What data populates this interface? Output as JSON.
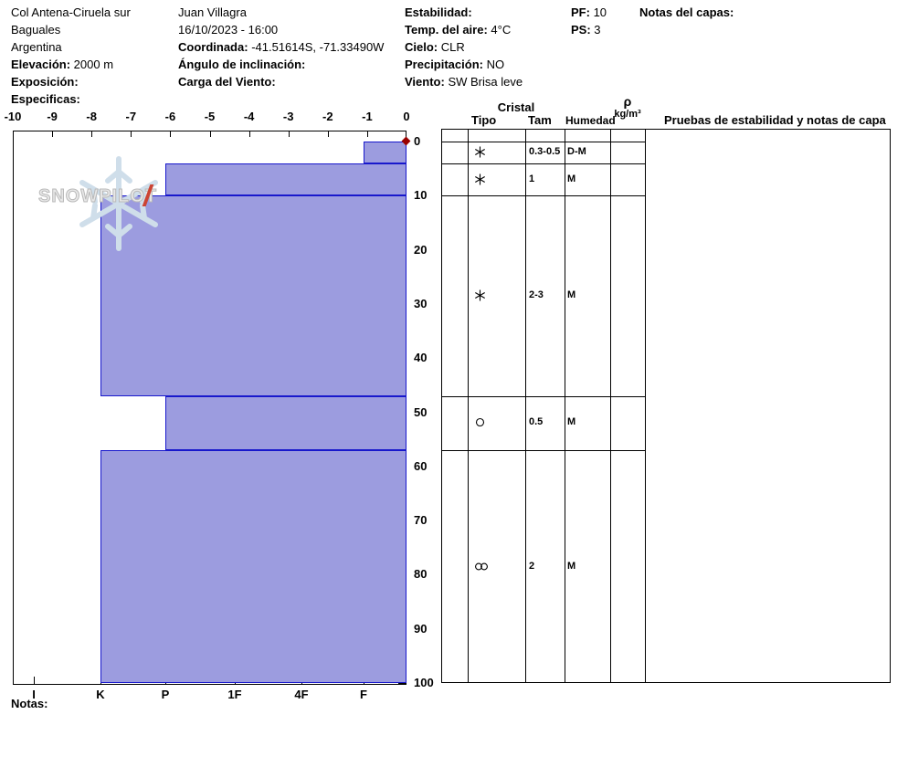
{
  "header": {
    "site": "Col Antena-Ciruela sur",
    "region": "Baguales",
    "country": "Argentina",
    "elevacion_label": "Elevación:",
    "elevacion_value": "2000 m",
    "exposicion_label": "Exposición:",
    "especificas_label": "Especificas:",
    "observer": "Juan Villagra",
    "datetime": "16/10/2023 - 16:00",
    "coordinada_label": "Coordinada:",
    "coordinada_value": "-41.51614S, -71.33490W",
    "angulo_label": "Ángulo de inclinación:",
    "carga_viento_label": "Carga del Viento:",
    "estabilidad_label": "Estabilidad:",
    "temp_aire_label": "Temp. del aire:",
    "temp_aire_value": "4°C",
    "cielo_label": "Cielo:",
    "cielo_value": "CLR",
    "precipitacion_label": "Precipitación:",
    "precipitacion_value": "NO",
    "viento_label": "Viento:",
    "viento_value": "SW Brisa leve",
    "pf_label": "PF:",
    "pf_value": "10",
    "ps_label": "PS:",
    "ps_value": "3",
    "notas_capas_label": "Notas del capas:"
  },
  "watermark": {
    "text": "SNOWPILOT"
  },
  "chart_data": {
    "type": "snow-profile",
    "title": "Snow pit hardness profile with layer table",
    "temp_axis": {
      "min": -10,
      "max": 0,
      "ticks": [
        -10,
        -9,
        -8,
        -7,
        -6,
        -5,
        -4,
        -3,
        -2,
        -1,
        0
      ]
    },
    "depth_axis": {
      "min": 0,
      "max": 100,
      "unit": "cm",
      "ticks": [
        0,
        10,
        20,
        30,
        40,
        50,
        60,
        70,
        80,
        90,
        100
      ]
    },
    "hardness_axis": {
      "labels": [
        "I",
        "K",
        "P",
        "1F",
        "4F",
        "F"
      ]
    },
    "surface_marker": {
      "depth": 0
    },
    "layers": [
      {
        "top_cm": 0,
        "bottom_cm": 4,
        "hardness": "F",
        "crystal_type": "stellar",
        "tam_mm": "0.3-0.5",
        "humedad": "D-M"
      },
      {
        "top_cm": 4,
        "bottom_cm": 10,
        "hardness": "P",
        "crystal_type": "stellar",
        "tam_mm": "1",
        "humedad": "M"
      },
      {
        "top_cm": 10,
        "bottom_cm": 47,
        "hardness": "K",
        "crystal_type": "stellar",
        "tam_mm": "2-3",
        "humedad": "M"
      },
      {
        "top_cm": 47,
        "bottom_cm": 57,
        "hardness": "P",
        "crystal_type": "round",
        "tam_mm": "0.5",
        "humedad": "M"
      },
      {
        "top_cm": 57,
        "bottom_cm": 100,
        "hardness": "K",
        "crystal_type": "rounds-cluster",
        "tam_mm": "2",
        "humedad": "M"
      }
    ]
  },
  "table": {
    "cristal_header": "Cristal",
    "tipo_header": "Tipo",
    "tam_header": "Tam",
    "humedad_header": "Humedad",
    "rho_symbol": "ρ",
    "rho_unit": "kg/m³",
    "notes_header": "Pruebas de estabilidad y notas de capa"
  },
  "footer": {
    "notas_label": "Notas:"
  },
  "colors": {
    "bar_fill": "#9c9cdf",
    "bar_border": "#1818cc",
    "marker": "#990000",
    "watermark_flake": "#cfdeea"
  }
}
